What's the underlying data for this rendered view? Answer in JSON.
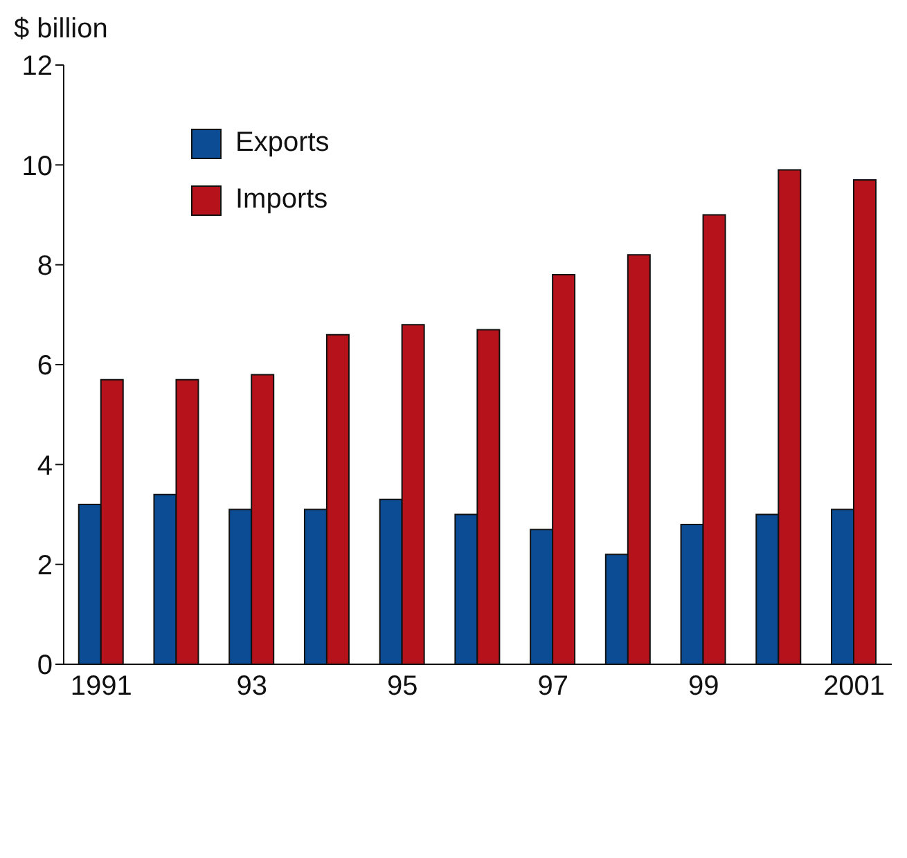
{
  "chart_data": {
    "type": "bar",
    "ylabel": "$ billion",
    "categories": [
      "1991",
      null,
      "93",
      null,
      "95",
      null,
      "97",
      null,
      "99",
      null,
      "2001"
    ],
    "series": [
      {
        "name": "Exports",
        "color": "#0b4c94",
        "values": [
          3.2,
          3.4,
          3.1,
          3.1,
          3.3,
          3.0,
          2.7,
          2.2,
          2.8,
          3.0,
          3.1
        ]
      },
      {
        "name": "Imports",
        "color": "#b5121b",
        "values": [
          5.7,
          5.7,
          5.8,
          6.6,
          6.8,
          6.7,
          7.8,
          8.2,
          9.0,
          9.9,
          9.7
        ]
      }
    ],
    "ylim": [
      0,
      12
    ],
    "yticks": [
      0,
      2,
      4,
      6,
      8,
      10,
      12
    ],
    "grid": false,
    "legend": "top left"
  }
}
